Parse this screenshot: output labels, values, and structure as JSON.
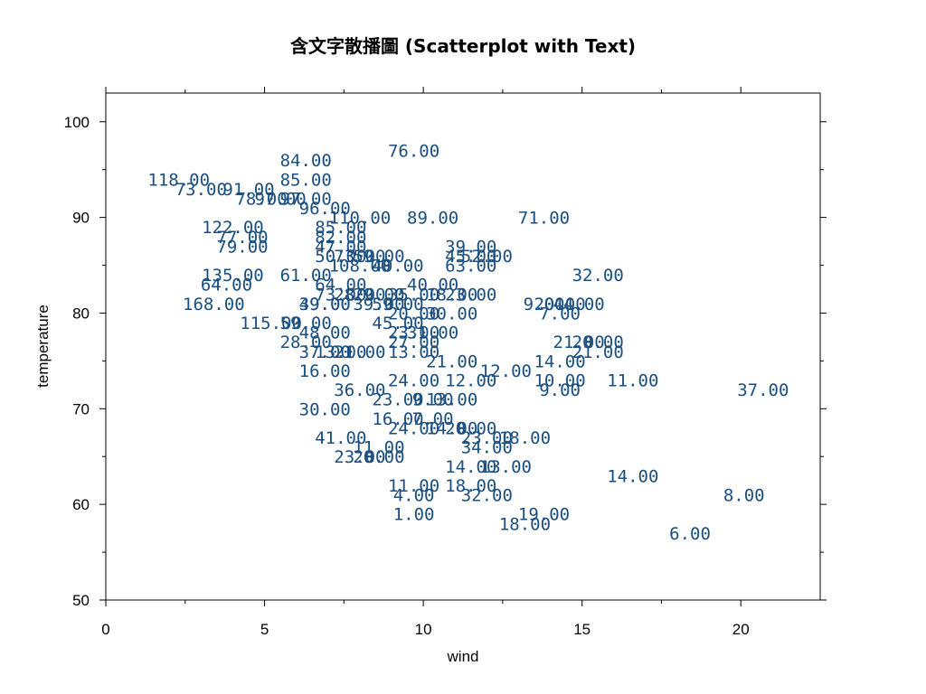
{
  "chart_data": {
    "type": "scatter",
    "title": "含文字散播圖 (Scatterplot with Text)",
    "xlabel": "wind",
    "ylabel": "temperature",
    "xlim": [
      0,
      22.5
    ],
    "ylim": [
      50,
      103
    ],
    "xticks": [
      0,
      5,
      10,
      15,
      20
    ],
    "yticks": [
      50,
      60,
      70,
      80,
      90,
      100
    ],
    "grid": false,
    "text_color": "#1a4f80",
    "points": [
      {
        "x": 9.7,
        "y": 97,
        "label": "76.00"
      },
      {
        "x": 6.3,
        "y": 96,
        "label": "84.00"
      },
      {
        "x": 6.3,
        "y": 94,
        "label": "85.00"
      },
      {
        "x": 2.3,
        "y": 94,
        "label": "118.00"
      },
      {
        "x": 3.0,
        "y": 93,
        "label": "73.00"
      },
      {
        "x": 4.5,
        "y": 93,
        "label": "91.00"
      },
      {
        "x": 4.9,
        "y": 92,
        "label": "78.00"
      },
      {
        "x": 5.5,
        "y": 92,
        "label": "97.00"
      },
      {
        "x": 6.3,
        "y": 92,
        "label": "97.00"
      },
      {
        "x": 6.9,
        "y": 91,
        "label": "96.00"
      },
      {
        "x": 8.0,
        "y": 90,
        "label": "110.00"
      },
      {
        "x": 10.3,
        "y": 90,
        "label": "89.00"
      },
      {
        "x": 13.8,
        "y": 90,
        "label": "71.00"
      },
      {
        "x": 4.0,
        "y": 89,
        "label": "122.00"
      },
      {
        "x": 7.4,
        "y": 89,
        "label": "85.00"
      },
      {
        "x": 7.4,
        "y": 88,
        "label": "82.00"
      },
      {
        "x": 4.3,
        "y": 88,
        "label": "77.00"
      },
      {
        "x": 4.3,
        "y": 87,
        "label": "79.00"
      },
      {
        "x": 7.4,
        "y": 87,
        "label": "47.00"
      },
      {
        "x": 11.5,
        "y": 87,
        "label": "39.00"
      },
      {
        "x": 7.4,
        "y": 86,
        "label": "50.00"
      },
      {
        "x": 8.0,
        "y": 86,
        "label": "73.00"
      },
      {
        "x": 8.6,
        "y": 86,
        "label": "59.00"
      },
      {
        "x": 11.5,
        "y": 86,
        "label": "45.00"
      },
      {
        "x": 12.0,
        "y": 86,
        "label": "52.00"
      },
      {
        "x": 8.0,
        "y": 85,
        "label": "108.00"
      },
      {
        "x": 9.2,
        "y": 85,
        "label": "40.00"
      },
      {
        "x": 11.5,
        "y": 85,
        "label": "63.00"
      },
      {
        "x": 4.0,
        "y": 84,
        "label": "135.00"
      },
      {
        "x": 6.3,
        "y": 84,
        "label": "61.00"
      },
      {
        "x": 15.5,
        "y": 84,
        "label": "32.00"
      },
      {
        "x": 3.8,
        "y": 83,
        "label": "64.00"
      },
      {
        "x": 7.4,
        "y": 83,
        "label": "64.00"
      },
      {
        "x": 10.3,
        "y": 83,
        "label": "40.00"
      },
      {
        "x": 7.4,
        "y": 82,
        "label": "73.00"
      },
      {
        "x": 8.0,
        "y": 82,
        "label": "28.00"
      },
      {
        "x": 8.6,
        "y": 82,
        "label": "29.00"
      },
      {
        "x": 9.7,
        "y": 82,
        "label": "35.00"
      },
      {
        "x": 10.9,
        "y": 82,
        "label": "18.00"
      },
      {
        "x": 11.5,
        "y": 82,
        "label": "23.00"
      },
      {
        "x": 3.4,
        "y": 81,
        "label": "168.00"
      },
      {
        "x": 6.9,
        "y": 81,
        "label": "49.00"
      },
      {
        "x": 6.9,
        "y": 81,
        "label": "39.00"
      },
      {
        "x": 8.6,
        "y": 81,
        "label": "39.00"
      },
      {
        "x": 9.2,
        "y": 81,
        "label": "59.00"
      },
      {
        "x": 13.8,
        "y": 81,
        "label": "9.00"
      },
      {
        "x": 14.3,
        "y": 81,
        "label": "20.00"
      },
      {
        "x": 14.9,
        "y": 81,
        "label": "44.00"
      },
      {
        "x": 9.7,
        "y": 80,
        "label": "20.00"
      },
      {
        "x": 10.9,
        "y": 80,
        "label": "30.00"
      },
      {
        "x": 14.3,
        "y": 80,
        "label": "7.00"
      },
      {
        "x": 5.2,
        "y": 79,
        "label": "115.00"
      },
      {
        "x": 6.3,
        "y": 79,
        "label": "59.00"
      },
      {
        "x": 9.2,
        "y": 79,
        "label": "45.00"
      },
      {
        "x": 6.9,
        "y": 78,
        "label": "48.00"
      },
      {
        "x": 9.7,
        "y": 78,
        "label": "23.00"
      },
      {
        "x": 10.3,
        "y": 78,
        "label": "31.00"
      },
      {
        "x": 6.3,
        "y": 77,
        "label": "28.00"
      },
      {
        "x": 9.7,
        "y": 77,
        "label": "27.00"
      },
      {
        "x": 14.9,
        "y": 77,
        "label": "21.00"
      },
      {
        "x": 15.5,
        "y": 77,
        "label": "20.00"
      },
      {
        "x": 6.9,
        "y": 76,
        "label": "37.00"
      },
      {
        "x": 7.4,
        "y": 76,
        "label": "13.00"
      },
      {
        "x": 8.0,
        "y": 76,
        "label": "21.00"
      },
      {
        "x": 9.7,
        "y": 76,
        "label": "13.00"
      },
      {
        "x": 15.5,
        "y": 76,
        "label": "21.00"
      },
      {
        "x": 10.9,
        "y": 75,
        "label": "21.00"
      },
      {
        "x": 14.3,
        "y": 75,
        "label": "14.00"
      },
      {
        "x": 6.9,
        "y": 74,
        "label": "16.00"
      },
      {
        "x": 12.6,
        "y": 74,
        "label": "12.00"
      },
      {
        "x": 9.7,
        "y": 73,
        "label": "24.00"
      },
      {
        "x": 11.5,
        "y": 73,
        "label": "12.00"
      },
      {
        "x": 14.3,
        "y": 73,
        "label": "10.00"
      },
      {
        "x": 16.6,
        "y": 73,
        "label": "11.00"
      },
      {
        "x": 8.0,
        "y": 72,
        "label": "36.00"
      },
      {
        "x": 14.3,
        "y": 72,
        "label": "9.00"
      },
      {
        "x": 20.7,
        "y": 72,
        "label": "37.00"
      },
      {
        "x": 9.2,
        "y": 71,
        "label": "23.00"
      },
      {
        "x": 10.3,
        "y": 71,
        "label": "9.00"
      },
      {
        "x": 10.9,
        "y": 71,
        "label": "13.00"
      },
      {
        "x": 6.9,
        "y": 70,
        "label": "30.00"
      },
      {
        "x": 9.2,
        "y": 69,
        "label": "16.00"
      },
      {
        "x": 10.3,
        "y": 69,
        "label": "7.00"
      },
      {
        "x": 9.7,
        "y": 68,
        "label": "24.00"
      },
      {
        "x": 10.9,
        "y": 68,
        "label": "14.00"
      },
      {
        "x": 11.5,
        "y": 68,
        "label": "20.00"
      },
      {
        "x": 7.4,
        "y": 67,
        "label": "41.00"
      },
      {
        "x": 12.0,
        "y": 67,
        "label": "23.00"
      },
      {
        "x": 13.2,
        "y": 67,
        "label": "18.00"
      },
      {
        "x": 8.6,
        "y": 66,
        "label": "11.00"
      },
      {
        "x": 12.0,
        "y": 66,
        "label": "34.00"
      },
      {
        "x": 8.0,
        "y": 65,
        "label": "23.00"
      },
      {
        "x": 8.6,
        "y": 65,
        "label": "20.00"
      },
      {
        "x": 11.5,
        "y": 64,
        "label": "14.00"
      },
      {
        "x": 12.6,
        "y": 64,
        "label": "13.00"
      },
      {
        "x": 16.6,
        "y": 63,
        "label": "14.00"
      },
      {
        "x": 9.7,
        "y": 62,
        "label": "11.00"
      },
      {
        "x": 11.5,
        "y": 62,
        "label": "18.00"
      },
      {
        "x": 9.7,
        "y": 61,
        "label": "4.00"
      },
      {
        "x": 12.0,
        "y": 61,
        "label": "32.00"
      },
      {
        "x": 20.1,
        "y": 61,
        "label": "8.00"
      },
      {
        "x": 9.7,
        "y": 59,
        "label": "1.00"
      },
      {
        "x": 13.8,
        "y": 59,
        "label": "19.00"
      },
      {
        "x": 13.2,
        "y": 58,
        "label": "18.00"
      },
      {
        "x": 18.4,
        "y": 57,
        "label": "6.00"
      }
    ]
  }
}
